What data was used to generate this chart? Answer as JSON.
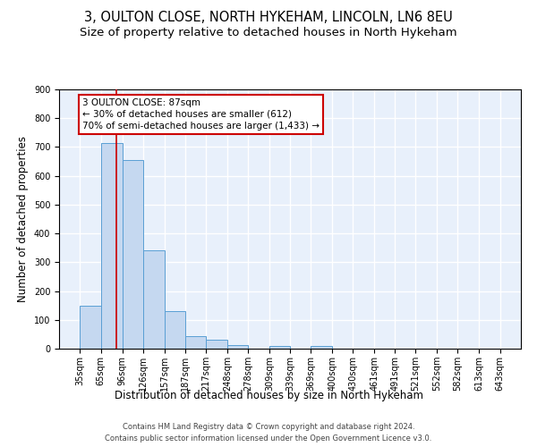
{
  "title1": "3, OULTON CLOSE, NORTH HYKEHAM, LINCOLN, LN6 8EU",
  "title2": "Size of property relative to detached houses in North Hykeham",
  "xlabel": "Distribution of detached houses by size in North Hykeham",
  "ylabel": "Number of detached properties",
  "footer1": "Contains HM Land Registry data © Crown copyright and database right 2024.",
  "footer2": "Contains public sector information licensed under the Open Government Licence v3.0.",
  "bar_edges": [
    35,
    65,
    96,
    126,
    157,
    187,
    217,
    248,
    278,
    309,
    339,
    369,
    400,
    430,
    461,
    491,
    521,
    552,
    582,
    613,
    643
  ],
  "bar_heights": [
    150,
    715,
    655,
    340,
    130,
    42,
    32,
    12,
    0,
    10,
    0,
    10,
    0,
    0,
    0,
    0,
    0,
    0,
    0,
    0
  ],
  "bar_color": "#c5d8f0",
  "bar_edge_color": "#5a9fd4",
  "property_size": 87,
  "annotation_line1": "3 OULTON CLOSE: 87sqm",
  "annotation_line2": "← 30% of detached houses are smaller (612)",
  "annotation_line3": "70% of semi-detached houses are larger (1,433) →",
  "annotation_box_color": "#ffffff",
  "annotation_box_edge": "#cc0000",
  "vline_color": "#cc0000",
  "ylim": [
    0,
    900
  ],
  "yticks": [
    0,
    100,
    200,
    300,
    400,
    500,
    600,
    700,
    800,
    900
  ],
  "bg_color": "#e8f0fb",
  "grid_color": "#ffffff",
  "title_fontsize": 10.5,
  "subtitle_fontsize": 9.5,
  "tick_label_fontsize": 7,
  "axis_label_fontsize": 8.5,
  "footer_fontsize": 6
}
